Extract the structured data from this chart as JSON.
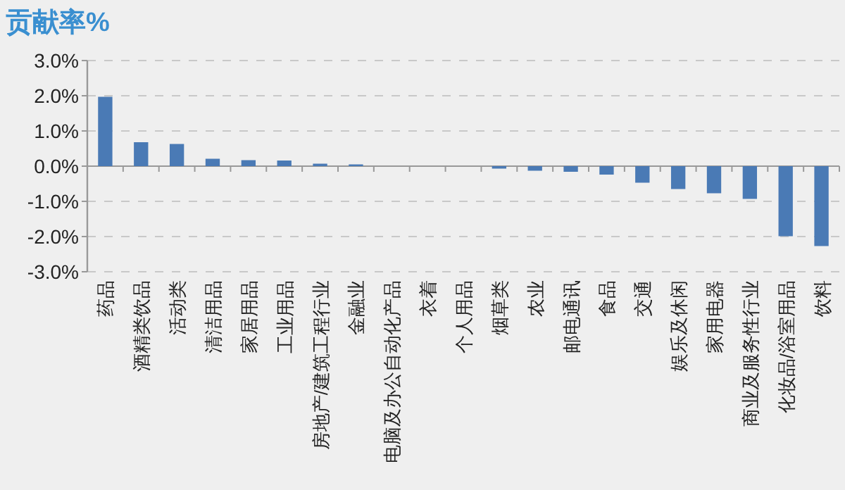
{
  "chart_data": {
    "type": "bar",
    "title": "贡献率%",
    "categories": [
      "药品",
      "酒精类饮品",
      "活动类",
      "清洁用品",
      "家居用品",
      "工业用品",
      "房地产/建筑工程行业",
      "金融业",
      "电脑及办公自动化产品",
      "衣着",
      "个人用品",
      "烟草类",
      "农业",
      "邮电通讯",
      "食品",
      "交通",
      "娱乐及休闲",
      "家用电器",
      "商业及服务性行业",
      "化妆品/浴室用品",
      "饮料"
    ],
    "values": [
      1.97,
      0.68,
      0.63,
      0.21,
      0.17,
      0.16,
      0.07,
      0.05,
      0,
      0,
      0,
      -0.07,
      -0.13,
      -0.16,
      -0.24,
      -0.47,
      -0.65,
      -0.77,
      -0.93,
      -1.99,
      -2.27
    ],
    "color": "#4a7ab5",
    "ylim": [
      -3,
      3
    ],
    "yticks": [
      {
        "value": 3,
        "label": "3.0%"
      },
      {
        "value": 2,
        "label": "2.0%"
      },
      {
        "value": 1,
        "label": "1.0%"
      },
      {
        "value": 0,
        "label": "0.0%"
      },
      {
        "value": -1,
        "label": "-1.0%"
      },
      {
        "value": -2,
        "label": "-2.0%"
      },
      {
        "value": -3,
        "label": "-3.0%"
      }
    ],
    "grid": "y"
  }
}
